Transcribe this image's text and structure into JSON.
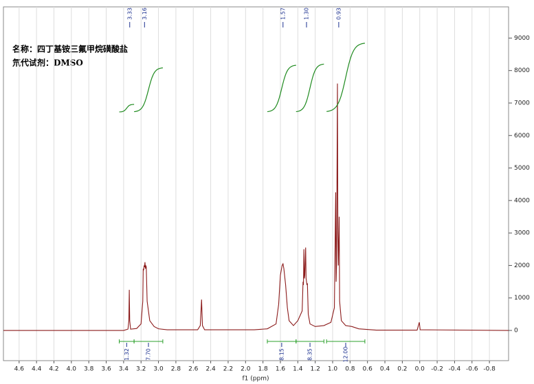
{
  "chart_data": {
    "type": "line",
    "annotations": [
      "名称：四丁基铵三氟甲烷磺酸盐",
      "氘代试剂：DMSO"
    ],
    "x_label": "f1 (ppm)",
    "xlim": [
      4.78,
      -1.02
    ],
    "ylim": [
      -930,
      9960
    ],
    "xticks": [
      4.6,
      4.4,
      4.2,
      {
        "value": 4.0,
        "label": "4.0"
      },
      3.8,
      3.6,
      3.4,
      3.2,
      {
        "value": 3.0,
        "label": "3.0"
      },
      2.8,
      2.6,
      2.4,
      2.2,
      {
        "value": 2.0,
        "label": "2.0"
      },
      1.8,
      1.6,
      1.4,
      1.2,
      {
        "value": 1.0,
        "label": "1.0"
      },
      0.8,
      0.6,
      0.4,
      0.2,
      {
        "value": 0.0,
        "label": "0.0"
      },
      -0.2,
      -0.4,
      -0.6,
      -0.8
    ],
    "yticks": [
      0,
      1000,
      2000,
      3000,
      4000,
      5000,
      6000,
      7000,
      8000,
      9000
    ],
    "grid": true,
    "series": [
      {
        "color": "#8b1a1a",
        "x": [
          4.78,
          3.4,
          3.35,
          3.34,
          3.335,
          3.33,
          3.32,
          3.25,
          3.2,
          3.18,
          3.175,
          3.17,
          3.165,
          3.16,
          3.155,
          3.15,
          3.145,
          3.14,
          3.13,
          3.1,
          3.05,
          3.0,
          2.9,
          2.55,
          2.52,
          2.505,
          2.495,
          2.47,
          1.9,
          1.75,
          1.65,
          1.62,
          1.6,
          1.58,
          1.57,
          1.56,
          1.54,
          1.52,
          1.5,
          1.45,
          1.4,
          1.35,
          1.34,
          1.335,
          1.33,
          1.325,
          1.32,
          1.31,
          1.305,
          1.3,
          1.295,
          1.29,
          1.28,
          1.26,
          1.2,
          1.1,
          1.02,
          0.98,
          0.965,
          0.96,
          0.955,
          0.945,
          0.94,
          0.935,
          0.925,
          0.92,
          0.9,
          0.85,
          0.78,
          0.7,
          0.5,
          0.03,
          0.005,
          -0.005,
          -1.02
        ],
        "values": [
          0,
          0,
          40,
          300,
          1250,
          300,
          40,
          60,
          200,
          900,
          1900,
          1850,
          2000,
          1950,
          2100,
          1900,
          2000,
          1950,
          900,
          300,
          120,
          50,
          20,
          20,
          150,
          950,
          150,
          20,
          20,
          50,
          200,
          800,
          1700,
          2000,
          2050,
          1900,
          1400,
          700,
          300,
          150,
          300,
          600,
          1500,
          1400,
          2500,
          1600,
          1700,
          2550,
          1600,
          1500,
          1400,
          1450,
          500,
          200,
          120,
          150,
          250,
          700,
          4250,
          1500,
          2000,
          7600,
          3000,
          2000,
          3500,
          900,
          300,
          150,
          120,
          50,
          10,
          10,
          250,
          20,
          0
        ]
      }
    ],
    "peak_labels": [
      {
        "value": 3.33,
        "label": "3.33"
      },
      {
        "value": 3.16,
        "label": "3.16"
      },
      {
        "value": 1.57,
        "label": "1.57"
      },
      {
        "value": 1.3,
        "label": "1.30"
      },
      {
        "value": 0.93,
        "label": "0.93"
      }
    ],
    "integrals": [
      {
        "from": 3.45,
        "to": 3.28,
        "value": 1.32
      },
      {
        "from": 3.28,
        "to": 2.95,
        "value": 7.7,
        "label": "7.70"
      },
      {
        "from": 1.75,
        "to": 1.42,
        "value": 8.15
      },
      {
        "from": 1.42,
        "to": 1.1,
        "value": 8.35
      },
      {
        "from": 1.07,
        "to": 0.63,
        "value": 12.0,
        "label": "12.00"
      }
    ]
  }
}
